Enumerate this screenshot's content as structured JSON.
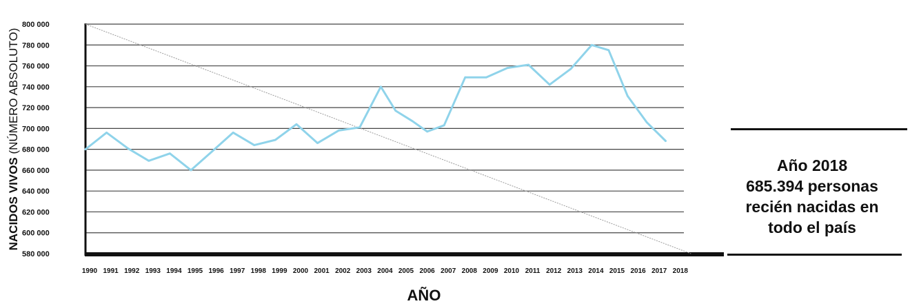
{
  "chart_data": {
    "type": "line",
    "title": "",
    "ylabel_bold": "NACIDOS VIVOS",
    "ylabel_normal": "(NÚMERO ABSOLUTO)",
    "xlabel": "AÑO",
    "ylim": [
      580000,
      800000
    ],
    "yticks": [
      "800 000",
      "780 000",
      "760 000",
      "740 000",
      "720 000",
      "700 000",
      "680 000",
      "660 000",
      "640 000",
      "620 000",
      "600 000",
      "580 000"
    ],
    "ytick_values": [
      800000,
      780000,
      760000,
      740000,
      720000,
      700000,
      680000,
      660000,
      640000,
      620000,
      600000,
      580000
    ],
    "categories": [
      "1990",
      "1991",
      "1992",
      "1993",
      "1994",
      "1995",
      "1996",
      "1997",
      "1998",
      "1999",
      "2000",
      "2001",
      "2002",
      "2003",
      "2004",
      "2005",
      "2006",
      "2007",
      "2008",
      "2009",
      "2010",
      "2011",
      "2012",
      "2013",
      "2014",
      "2015",
      "2016",
      "2017",
      "2018"
    ],
    "series": [
      {
        "values": [
          [
            0,
            680000
          ],
          [
            1,
            696000
          ],
          [
            2,
            681000
          ],
          [
            3,
            669000
          ],
          [
            4,
            676000
          ],
          [
            5,
            660000
          ],
          [
            6,
            678000
          ],
          [
            7,
            696000
          ],
          [
            8,
            684000
          ],
          [
            9,
            689000
          ],
          [
            10,
            704000
          ],
          [
            11,
            686000
          ],
          [
            12,
            698000
          ],
          [
            13,
            701000
          ],
          [
            14,
            740000
          ],
          [
            14.7,
            717000
          ],
          [
            15.5,
            707000
          ],
          [
            16.2,
            697000
          ],
          [
            17,
            703000
          ],
          [
            18,
            749000
          ],
          [
            19,
            749000
          ],
          [
            20,
            758000
          ],
          [
            21,
            761000
          ],
          [
            22,
            742000
          ],
          [
            23,
            757000
          ],
          [
            24,
            780000
          ],
          [
            24.8,
            775000
          ],
          [
            25.7,
            731000
          ],
          [
            26.6,
            706000
          ],
          [
            27.5,
            688000
          ]
        ]
      }
    ],
    "trend_line": [
      [
        0,
        800000
      ],
      [
        28.7,
        580000
      ]
    ],
    "grid": true,
    "line_color": "#8fd3ea",
    "grid_color": "#444444"
  },
  "annotation": {
    "line1": "Año 2018",
    "line2": "685.394 personas",
    "line3": "recién nacidas en",
    "line4": "todo el país"
  }
}
